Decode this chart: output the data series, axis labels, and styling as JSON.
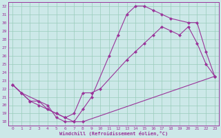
{
  "title": "",
  "xlabel": "Windchill (Refroidissement éolien,°C)",
  "bg_color": "#cce8e8",
  "line_color": "#993399",
  "grid_color": "#99ccbb",
  "ylim": [
    17.5,
    32.5
  ],
  "xlim": [
    -0.5,
    23.5
  ],
  "yticks": [
    18,
    19,
    20,
    21,
    22,
    23,
    24,
    25,
    26,
    27,
    28,
    29,
    30,
    31,
    32
  ],
  "xticks": [
    0,
    1,
    2,
    3,
    4,
    5,
    6,
    7,
    8,
    9,
    10,
    11,
    12,
    13,
    14,
    15,
    16,
    17,
    18,
    19,
    20,
    21,
    22,
    23
  ],
  "curve1_x": [
    0,
    1,
    3,
    4,
    5,
    6,
    7,
    8,
    9,
    11,
    12,
    13,
    14,
    15,
    16,
    17,
    18,
    20,
    21,
    22,
    23
  ],
  "curve1_y": [
    22.5,
    21.5,
    20.5,
    20.0,
    18.5,
    18.0,
    18.0,
    19.5,
    21.0,
    26.0,
    28.5,
    31.0,
    32.0,
    32.0,
    31.5,
    31.0,
    30.5,
    30.0,
    30.0,
    26.5,
    23.5
  ],
  "curve2_x": [
    0,
    1,
    2,
    3,
    4,
    5,
    6,
    7,
    8,
    9,
    10,
    13,
    14,
    15,
    16,
    17,
    18,
    19,
    20,
    21,
    22,
    23
  ],
  "curve2_y": [
    22.5,
    21.5,
    20.5,
    20.0,
    19.5,
    19.0,
    18.5,
    19.0,
    21.5,
    21.5,
    22.0,
    25.5,
    26.5,
    27.5,
    28.5,
    29.5,
    29.0,
    28.5,
    29.5,
    27.5,
    25.0,
    23.5
  ],
  "curve3_x": [
    0,
    1,
    2,
    3,
    4,
    5,
    6,
    7,
    8,
    23
  ],
  "curve3_y": [
    22.5,
    21.5,
    20.5,
    20.5,
    19.5,
    19.0,
    18.5,
    18.0,
    18.0,
    23.5
  ]
}
